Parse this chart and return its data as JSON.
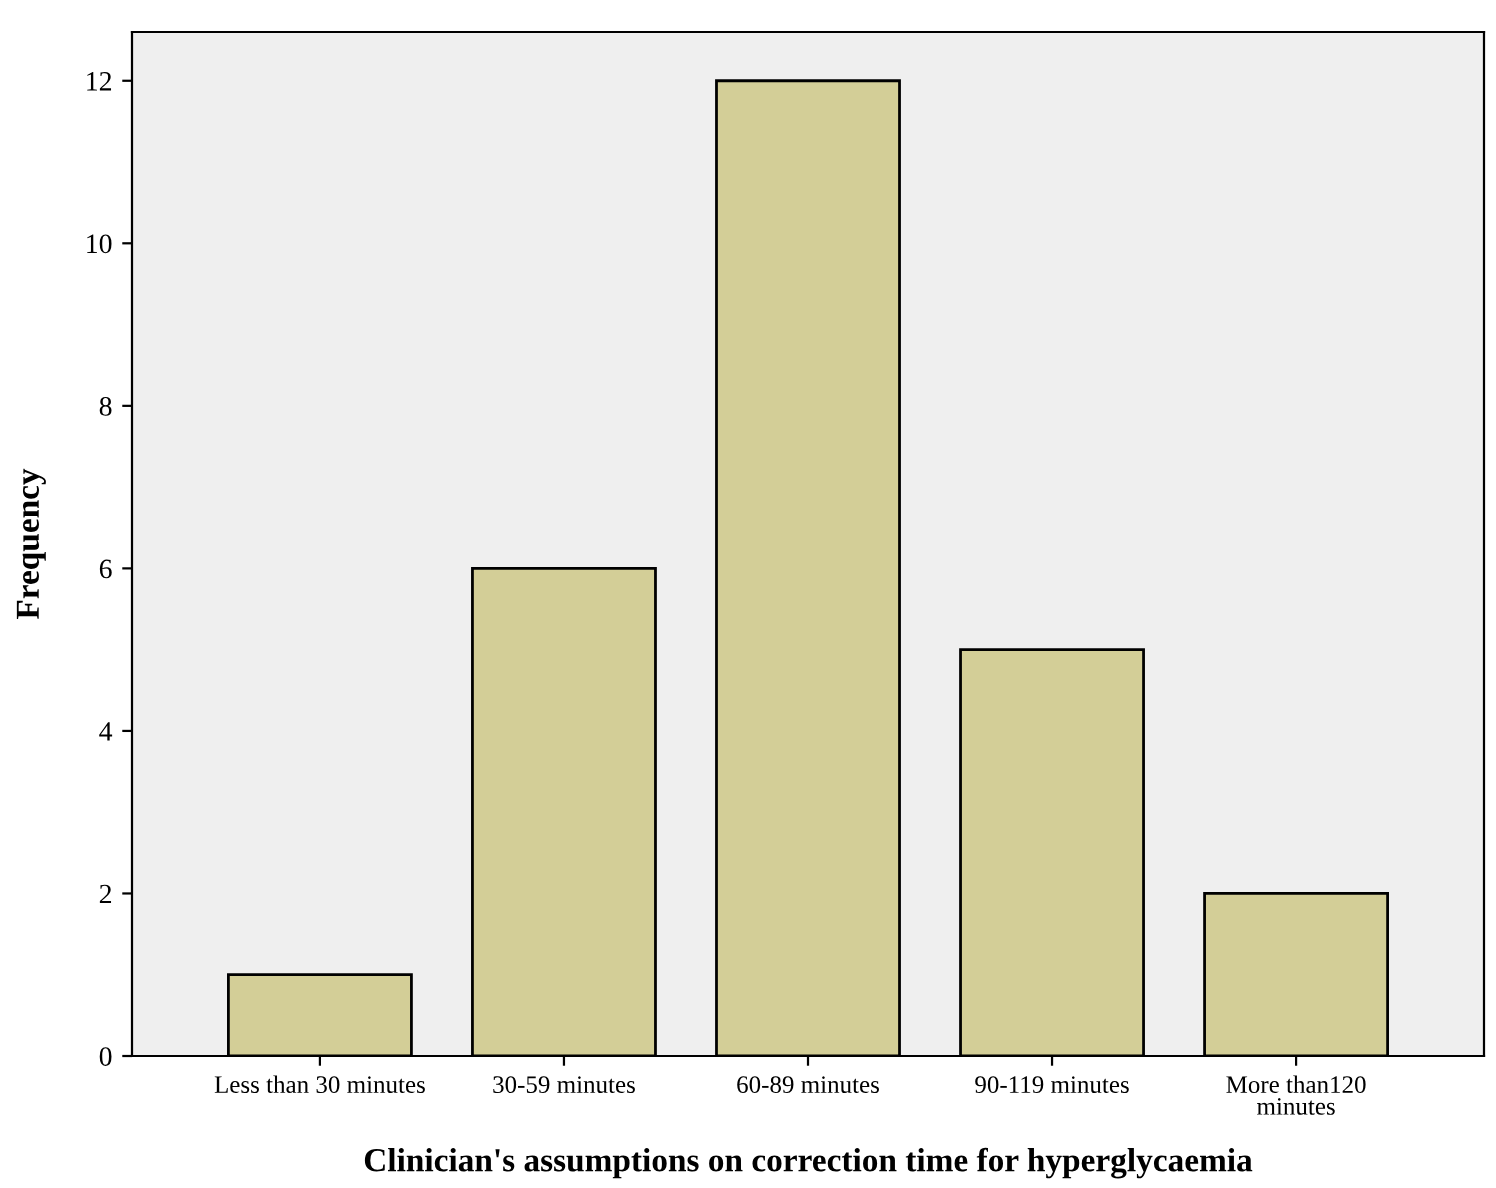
{
  "chart_data": {
    "type": "bar",
    "xlabel": "Clinician's assumptions on correction time for hyperglycaemia",
    "ylabel": "Frequency",
    "categories": [
      "Less than 30 minutes",
      "30-59 minutes",
      "60-89 minutes",
      "90-119 minutes",
      "More than120\nminutes"
    ],
    "values": [
      1,
      6,
      12,
      5,
      2
    ],
    "color": "#d3ce97",
    "ylim": [
      0,
      12.6
    ],
    "yticks": [
      0,
      2,
      4,
      6,
      8,
      10,
      12
    ],
    "grid": false
  }
}
